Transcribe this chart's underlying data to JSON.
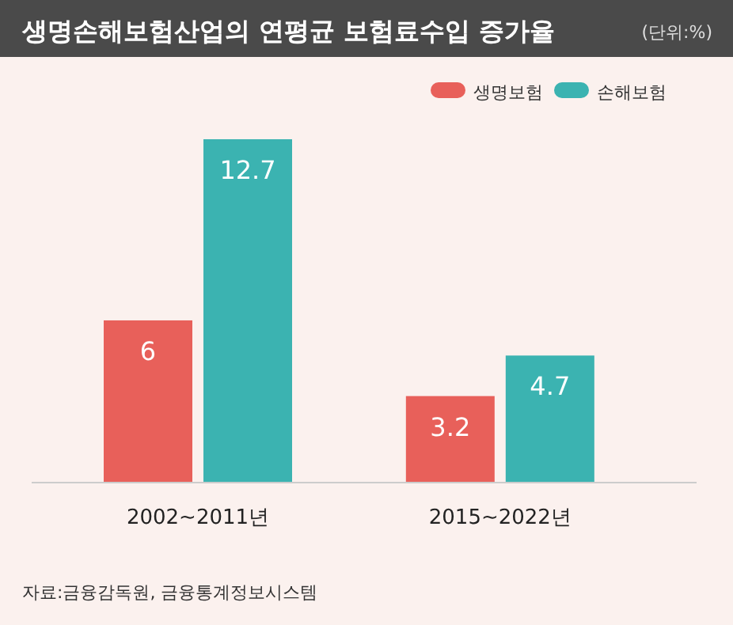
{
  "chart_data": {
    "type": "bar",
    "title": "생명손해보험산업의 연평균 보험료수입 증가율",
    "subtitle": "(단위:%)",
    "categories": [
      "2002~2011년",
      "2015~2022년"
    ],
    "series": [
      {
        "name": "생명보험",
        "color": "#e8605a",
        "values": [
          6,
          3.2
        ]
      },
      {
        "name": "손해보험",
        "color": "#3bb3b1",
        "values": [
          12.7,
          4.7
        ]
      }
    ],
    "data_labels": true,
    "legend": "top right",
    "annotations": [
      "자료:금융감독원, 금융통계정보시스템"
    ]
  }
}
